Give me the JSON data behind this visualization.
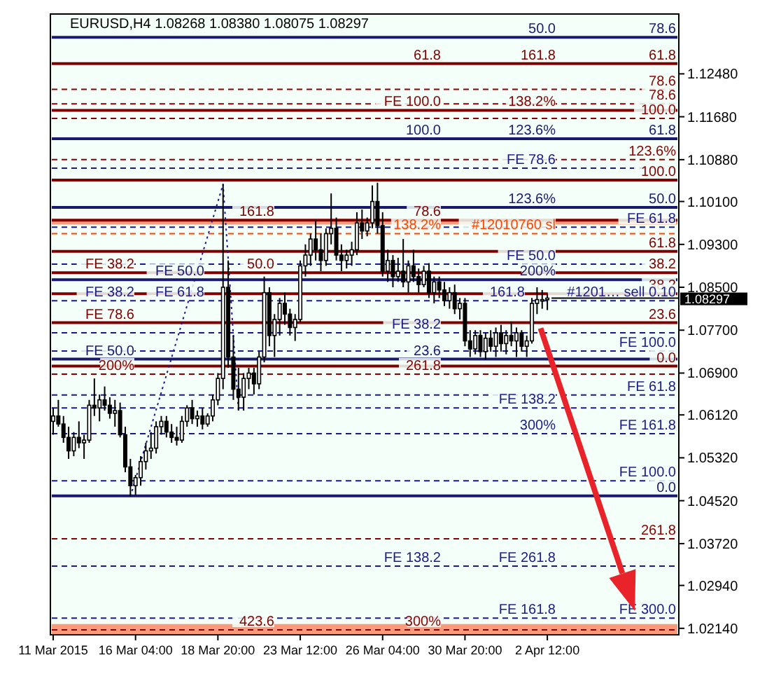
{
  "chart_data": {
    "type": "candlestick",
    "title": "EURUSD,H4  1.08268 1.08380 1.08075 1.08297",
    "categories": [
      "11 Mar 2015",
      null,
      null,
      null,
      null,
      null,
      null,
      null,
      null,
      null,
      null,
      null,
      null,
      null,
      null,
      null,
      "16 Mar 04:00",
      null,
      null,
      null,
      null,
      null,
      null,
      null,
      null,
      null,
      null,
      null,
      null,
      null,
      null,
      null,
      "18 Mar 20:00",
      null,
      null,
      null,
      null,
      null,
      null,
      null,
      null,
      null,
      null,
      null,
      null,
      null,
      null,
      null,
      "23 Mar 12:00",
      null,
      null,
      null,
      null,
      null,
      null,
      null,
      null,
      null,
      null,
      null,
      null,
      null,
      null,
      null,
      "26 Mar 04:00",
      null,
      null,
      null,
      null,
      null,
      null,
      null,
      null,
      null,
      null,
      null,
      null,
      null,
      null,
      null,
      "30 Mar 20:00",
      null,
      null,
      null,
      null,
      null,
      null,
      null,
      null,
      null,
      null,
      null,
      null,
      null,
      null,
      null,
      "2 Apr 12:00",
      null,
      null,
      null,
      null,
      null,
      null,
      null,
      null,
      null,
      null,
      null,
      null,
      null,
      null,
      null,
      null,
      null,
      null,
      null,
      null,
      null,
      null,
      null,
      null,
      null
    ],
    "ohlc": [
      [
        1.06,
        1.0625,
        1.0575,
        1.061
      ],
      [
        1.061,
        1.064,
        1.059,
        1.0595
      ],
      [
        1.0595,
        1.061,
        1.056,
        1.057
      ],
      [
        1.057,
        1.059,
        1.053,
        1.0545
      ],
      [
        1.0545,
        1.058,
        1.0535,
        1.057
      ],
      [
        1.057,
        1.06,
        1.055,
        1.056
      ],
      [
        1.056,
        1.0575,
        1.053,
        1.0565
      ],
      [
        1.0565,
        1.064,
        1.056,
        1.063
      ],
      [
        1.063,
        1.068,
        1.061,
        1.0625
      ],
      [
        1.0625,
        1.065,
        1.06,
        1.064
      ],
      [
        1.064,
        1.0665,
        1.062,
        1.063
      ],
      [
        1.063,
        1.0645,
        1.0605,
        1.0615
      ],
      [
        1.0615,
        1.064,
        1.059,
        1.062
      ],
      [
        1.062,
        1.0635,
        1.057,
        1.0575
      ],
      [
        1.0575,
        1.059,
        1.0505,
        1.0515
      ],
      [
        1.0515,
        1.053,
        1.046,
        1.048
      ],
      [
        1.048,
        1.05,
        1.0462,
        1.0495
      ],
      [
        1.0495,
        1.0535,
        1.048,
        1.0525
      ],
      [
        1.0525,
        1.056,
        1.051,
        1.0545
      ],
      [
        1.0545,
        1.058,
        1.053,
        1.055
      ],
      [
        1.055,
        1.06,
        1.054,
        1.059
      ],
      [
        1.059,
        1.061,
        1.0575,
        1.06
      ],
      [
        1.06,
        1.061,
        1.057,
        1.058
      ],
      [
        1.058,
        1.0595,
        1.056,
        1.057
      ],
      [
        1.057,
        1.059,
        1.0555,
        1.0565
      ],
      [
        1.0565,
        1.061,
        1.056,
        1.06
      ],
      [
        1.06,
        1.063,
        1.059,
        1.0625
      ],
      [
        1.0625,
        1.064,
        1.0595,
        1.0605
      ],
      [
        1.0605,
        1.062,
        1.059,
        1.061
      ],
      [
        1.061,
        1.0625,
        1.0585,
        1.0595
      ],
      [
        1.0595,
        1.0615,
        1.059,
        1.061
      ],
      [
        1.061,
        1.065,
        1.06,
        1.064
      ],
      [
        1.064,
        1.069,
        1.063,
        1.068
      ],
      [
        1.068,
        1.1042,
        1.066,
        1.085
      ],
      [
        1.085,
        1.09,
        1.07,
        1.072
      ],
      [
        1.072,
        1.076,
        1.064,
        1.066
      ],
      [
        1.066,
        1.07,
        1.062,
        1.0645
      ],
      [
        1.0645,
        1.069,
        1.062,
        1.068
      ],
      [
        1.068,
        1.07,
        1.066,
        1.069
      ],
      [
        1.069,
        1.07,
        1.065,
        1.067
      ],
      [
        1.067,
        1.073,
        1.066,
        1.072
      ],
      [
        1.072,
        1.087,
        1.071,
        1.084
      ],
      [
        1.084,
        1.085,
        1.074,
        1.076
      ],
      [
        1.076,
        1.08,
        1.072,
        1.079
      ],
      [
        1.079,
        1.083,
        1.076,
        1.082
      ],
      [
        1.082,
        1.084,
        1.078,
        1.08
      ],
      [
        1.08,
        1.081,
        1.076,
        1.0775
      ],
      [
        1.0775,
        1.08,
        1.075,
        1.079
      ],
      [
        1.079,
        1.09,
        1.0785,
        1.089
      ],
      [
        1.089,
        1.093,
        1.087,
        1.091
      ],
      [
        1.091,
        1.095,
        1.089,
        1.094
      ],
      [
        1.094,
        1.0975,
        1.09,
        1.092
      ],
      [
        1.092,
        1.095,
        1.088,
        1.09
      ],
      [
        1.09,
        1.096,
        1.089,
        1.095
      ],
      [
        1.095,
        1.1025,
        1.093,
        1.096
      ],
      [
        1.096,
        1.098,
        1.09,
        1.091
      ],
      [
        1.091,
        1.093,
        1.088,
        1.09
      ],
      [
        1.09,
        1.092,
        1.0885,
        1.091
      ],
      [
        1.091,
        1.0935,
        1.089,
        1.092
      ],
      [
        1.092,
        1.099,
        1.091,
        1.097
      ],
      [
        1.097,
        1.0995,
        1.094,
        1.0955
      ],
      [
        1.0955,
        1.098,
        1.0945,
        1.097
      ],
      [
        1.097,
        1.104,
        1.096,
        1.101
      ],
      [
        1.101,
        1.1045,
        1.095,
        1.0965
      ],
      [
        1.0965,
        1.099,
        1.087,
        1.088
      ],
      [
        1.088,
        1.092,
        1.086,
        1.09
      ],
      [
        1.09,
        1.091,
        1.085,
        1.087
      ],
      [
        1.087,
        1.0905,
        1.086,
        1.088
      ],
      [
        1.088,
        1.094,
        1.085,
        1.086
      ],
      [
        1.086,
        1.09,
        1.084,
        1.089
      ],
      [
        1.089,
        1.092,
        1.086,
        1.087
      ],
      [
        1.087,
        1.0885,
        1.084,
        1.0855
      ],
      [
        1.0855,
        1.089,
        1.085,
        1.088
      ],
      [
        1.088,
        1.0895,
        1.083,
        1.084
      ],
      [
        1.084,
        1.087,
        1.082,
        1.086
      ],
      [
        1.086,
        1.087,
        1.083,
        1.0845
      ],
      [
        1.0845,
        1.086,
        1.0815,
        1.0825
      ],
      [
        1.0825,
        1.085,
        1.081,
        1.084
      ],
      [
        1.084,
        1.0855,
        1.08,
        1.081
      ],
      [
        1.081,
        1.083,
        1.079,
        1.082
      ],
      [
        1.082,
        1.083,
        1.074,
        1.075
      ],
      [
        1.075,
        1.077,
        1.072,
        1.0735
      ],
      [
        1.0735,
        1.077,
        1.0725,
        1.076
      ],
      [
        1.076,
        1.077,
        1.072,
        1.073
      ],
      [
        1.073,
        1.0765,
        1.0715,
        1.0755
      ],
      [
        1.0755,
        1.077,
        1.073,
        1.074
      ],
      [
        1.074,
        1.0775,
        1.072,
        1.0765
      ],
      [
        1.0765,
        1.078,
        1.073,
        1.0745
      ],
      [
        1.0745,
        1.077,
        1.0725,
        1.076
      ],
      [
        1.076,
        1.0785,
        1.074,
        1.075
      ],
      [
        1.075,
        1.0775,
        1.072,
        1.0765
      ],
      [
        1.0765,
        1.077,
        1.073,
        1.074
      ],
      [
        1.074,
        1.076,
        1.072,
        1.075
      ],
      [
        1.075,
        1.083,
        1.0745,
        1.082
      ],
      [
        1.082,
        1.085,
        1.08,
        1.0827
      ],
      [
        1.0827,
        1.0845,
        1.081,
        1.0827
      ],
      [
        1.08268,
        1.0838,
        1.08075,
        1.08297
      ],
      null,
      null,
      null,
      null,
      null,
      null,
      null,
      null,
      null,
      null,
      null,
      null,
      null,
      null,
      null,
      null,
      null,
      null,
      null,
      null,
      null,
      null,
      null,
      null,
      null
    ],
    "series": [
      {
        "type": "line",
        "color": "#1a1a8c",
        "line_style": "dotted",
        "values": [
          null,
          null,
          null,
          null,
          null,
          null,
          null,
          null,
          null,
          null,
          null,
          null,
          null,
          null,
          null,
          1.046,
          null,
          null,
          null,
          null,
          null,
          null,
          null,
          null,
          null,
          null,
          null,
          null,
          null,
          null,
          null,
          null,
          null,
          1.1042,
          null,
          null,
          1.062,
          null,
          null,
          null,
          null,
          null,
          null,
          null,
          null,
          null,
          null,
          null,
          null,
          null,
          null,
          null,
          null,
          null,
          null,
          null,
          null,
          null,
          null,
          null,
          null,
          null,
          null,
          null,
          null,
          null,
          null,
          null,
          null,
          null,
          null,
          null,
          null,
          null,
          null,
          null,
          null,
          null,
          null,
          null,
          null,
          null,
          null,
          null,
          null,
          null,
          null,
          null,
          null,
          null,
          null,
          null,
          null,
          null,
          null,
          null,
          null,
          null,
          null,
          null,
          null,
          null,
          null,
          null,
          null,
          null,
          null,
          null,
          null,
          null,
          null,
          null,
          null,
          null,
          null,
          null,
          null,
          null,
          null,
          null,
          null,
          null
        ]
      }
    ],
    "ylim": [
      1.0202,
      1.1323
    ],
    "yticks": [
      {
        "value": 1.1248,
        "label": "1.12480"
      },
      {
        "value": 1.1168,
        "label": "1.11680"
      },
      {
        "value": 1.1088,
        "label": "1.10880"
      },
      {
        "value": 1.101,
        "label": "1.10100"
      },
      {
        "value": 1.093,
        "label": "1.09300"
      },
      {
        "value": 1.085,
        "label": "1.08500"
      },
      {
        "value": 1.077,
        "label": "1.07700"
      },
      {
        "value": 1.069,
        "label": "1.06900"
      },
      {
        "value": 1.0612,
        "label": "1.06120"
      },
      {
        "value": 1.0532,
        "label": "1.05320"
      },
      {
        "value": 1.0452,
        "label": "1.04520"
      },
      {
        "value": 1.0372,
        "label": "1.03720"
      },
      {
        "value": 1.0294,
        "label": "1.02940"
      },
      {
        "value": 1.0214,
        "label": "1.02140"
      }
    ],
    "grid": false,
    "bands": [
      {
        "axis": "y",
        "from": 1.0967,
        "to": 1.0977,
        "color": "#fa9a7a"
      },
      {
        "axis": "y",
        "from": 1.0203,
        "to": 1.0222,
        "color": "#fa9a7a"
      }
    ],
    "ref_lines": [
      {
        "axis": "y",
        "value": 1.1316,
        "color": "#191970",
        "line_style": "solid"
      },
      {
        "axis": "y",
        "value": 1.1267,
        "color": "#800000",
        "line_style": "solid"
      },
      {
        "axis": "y",
        "value": 1.1219,
        "color": "#8b0000",
        "line_style": "dashed"
      },
      {
        "axis": "y",
        "value": 1.1192,
        "color": "#8b0000",
        "line_style": "dashed"
      },
      {
        "axis": "y",
        "value": 1.118,
        "color": "#800000",
        "line_style": "solid"
      },
      {
        "axis": "y",
        "value": 1.1165,
        "color": "#8b0000",
        "line_style": "dashed"
      },
      {
        "axis": "y",
        "value": 1.1127,
        "color": "#191970",
        "line_style": "solid"
      },
      {
        "axis": "y",
        "value": 1.1088,
        "color": "#8b0000",
        "line_style": "dashed"
      },
      {
        "axis": "y",
        "value": 1.1072,
        "color": "#1a1a8c",
        "line_style": "dashed"
      },
      {
        "axis": "y",
        "value": 1.105,
        "color": "#800000",
        "line_style": "solid"
      },
      {
        "axis": "y",
        "value": 1.0999,
        "color": "#191970",
        "line_style": "solid"
      },
      {
        "axis": "y",
        "value": 1.0975,
        "color": "#800000",
        "line_style": "solid"
      },
      {
        "axis": "y",
        "value": 1.0962,
        "color": "#1a1a8c",
        "line_style": "dashed"
      },
      {
        "axis": "y",
        "value": 1.095,
        "color": "#ff4500",
        "line_style": "dashed"
      },
      {
        "axis": "y",
        "value": 1.0917,
        "color": "#800000",
        "line_style": "solid"
      },
      {
        "axis": "y",
        "value": 1.0893,
        "color": "#1a1a8c",
        "line_style": "dashed"
      },
      {
        "axis": "y",
        "value": 1.0877,
        "color": "#800000",
        "line_style": "solid"
      },
      {
        "axis": "y",
        "value": 1.0864,
        "color": "#191970",
        "line_style": "solid"
      },
      {
        "axis": "y",
        "value": 1.0838,
        "color": "#800000",
        "line_style": "solid"
      },
      {
        "axis": "y",
        "value": 1.0825,
        "color": "#1a1a8c",
        "line_style": "dashed"
      },
      {
        "axis": "y",
        "value": 1.0784,
        "color": "#800000",
        "line_style": "solid"
      },
      {
        "axis": "y",
        "value": 1.0765,
        "color": "#1a1a8c",
        "line_style": "dashed"
      },
      {
        "axis": "y",
        "value": 1.0731,
        "color": "#1a1a8c",
        "line_style": "dashed"
      },
      {
        "axis": "y",
        "value": 1.0716,
        "color": "#191970",
        "line_style": "solid"
      },
      {
        "axis": "y",
        "value": 1.0703,
        "color": "#800000",
        "line_style": "solid"
      },
      {
        "axis": "y",
        "value": 1.0688,
        "color": "#8b0000",
        "line_style": "dashed"
      },
      {
        "axis": "y",
        "value": 1.0649,
        "color": "#1a1a8c",
        "line_style": "dashed"
      },
      {
        "axis": "y",
        "value": 1.0625,
        "color": "#1a1a8c",
        "line_style": "dashed"
      },
      {
        "axis": "y",
        "value": 1.0577,
        "color": "#1a1a8c",
        "line_style": "dashed"
      },
      {
        "axis": "y",
        "value": 1.0489,
        "color": "#1a1a8c",
        "line_style": "dashed"
      },
      {
        "axis": "y",
        "value": 1.0461,
        "color": "#191970",
        "line_style": "solid"
      },
      {
        "axis": "y",
        "value": 1.0381,
        "color": "#8b0000",
        "line_style": "dashed"
      },
      {
        "axis": "y",
        "value": 1.033,
        "color": "#1a1a8c",
        "line_style": "dashed"
      },
      {
        "axis": "y",
        "value": 1.0233,
        "color": "#1a1a8c",
        "line_style": "dashed"
      },
      {
        "axis": "y",
        "value": 1.0211,
        "color": "#8b0000",
        "line_style": "dashed"
      },
      {
        "axis": "y",
        "value": 1.08297,
        "label": "1.08297",
        "color": "#000000",
        "line_style": "solid"
      }
    ],
    "annotations": [
      {
        "text": "78.6",
        "y": 1.1316
      },
      {
        "text": "50.0",
        "y": 1.1316
      },
      {
        "text": "61.8",
        "y": 1.1267
      },
      {
        "text": "161.8",
        "y": 1.1267
      },
      {
        "text": "61.8",
        "y": 1.1267
      },
      {
        "text": "78.6",
        "y": 1.1219
      },
      {
        "text": "78.6",
        "y": 1.1192
      },
      {
        "text": "138.2%",
        "y": 1.118
      },
      {
        "text": "FE 100.0",
        "y": 1.118
      },
      {
        "text": "100.0",
        "y": 1.1165
      },
      {
        "text": "61.8",
        "y": 1.1127
      },
      {
        "text": "123.6%",
        "y": 1.1127
      },
      {
        "text": "100.0",
        "y": 1.1127
      },
      {
        "text": "123.6%",
        "y": 1.1088
      },
      {
        "text": "FE 78.6",
        "y": 1.1072
      },
      {
        "text": "100.0",
        "y": 1.105
      },
      {
        "text": "50.0",
        "y": 1.0999
      },
      {
        "text": "123.6%",
        "y": 1.0999
      },
      {
        "text": "78.6",
        "y": 1.0975
      },
      {
        "text": "161.8",
        "y": 1.0975
      },
      {
        "text": "FE 61.8",
        "y": 1.0962
      },
      {
        "text": "#12010760 sl",
        "y": 1.095
      },
      {
        "text": "138.2%",
        "y": 1.095
      },
      {
        "text": "61.8",
        "y": 1.0917
      },
      {
        "text": "FE 50.0",
        "y": 1.0893
      },
      {
        "text": "38.2",
        "y": 1.0877
      },
      {
        "text": "50.0",
        "y": 1.0877
      },
      {
        "text": "FE 38.2",
        "y": 1.0877
      },
      {
        "text": "200%",
        "y": 1.0864
      },
      {
        "text": "FE 50.0",
        "y": 1.0864
      },
      {
        "text": "38.2",
        "y": 1.0838
      },
      {
        "text": "FE 38.2",
        "y": 1.0825
      },
      {
        "text": "FE 61.8",
        "y": 1.0825
      },
      {
        "text": "#1201… sell 0.10",
        "y": 1.0825
      },
      {
        "text": "161.8",
        "y": 1.0825
      },
      {
        "text": "23.6",
        "y": 1.0784
      },
      {
        "text": "FE 78.6",
        "y": 1.0784
      },
      {
        "text": "FE 38.2",
        "y": 1.0765
      },
      {
        "text": "FE 100.0",
        "y": 1.0731
      },
      {
        "text": "23.6",
        "y": 1.0716
      },
      {
        "text": "FE 50.0",
        "y": 1.0716
      },
      {
        "text": "0.0",
        "y": 1.0703
      },
      {
        "text": "261.8",
        "y": 1.0688
      },
      {
        "text": "200%",
        "y": 1.0688
      },
      {
        "text": "FE 61.8",
        "y": 1.0649
      },
      {
        "text": "FE 138.2",
        "y": 1.0625
      },
      {
        "text": "FE 161.8",
        "y": 1.0577
      },
      {
        "text": "300%",
        "y": 1.0577
      },
      {
        "text": "FE 100.0",
        "y": 1.0489
      },
      {
        "text": "0.0",
        "y": 1.0461
      },
      {
        "text": "261.8",
        "y": 1.0381
      },
      {
        "text": "FE 261.8",
        "y": 1.033
      },
      {
        "text": "FE 138.2",
        "y": 1.033
      },
      {
        "text": "FE 300.0",
        "y": 1.0233
      },
      {
        "text": "FE 161.8",
        "y": 1.0233
      },
      {
        "text": "300%",
        "y": 1.0211
      },
      {
        "text": "423.6",
        "y": 1.0211
      }
    ]
  }
}
